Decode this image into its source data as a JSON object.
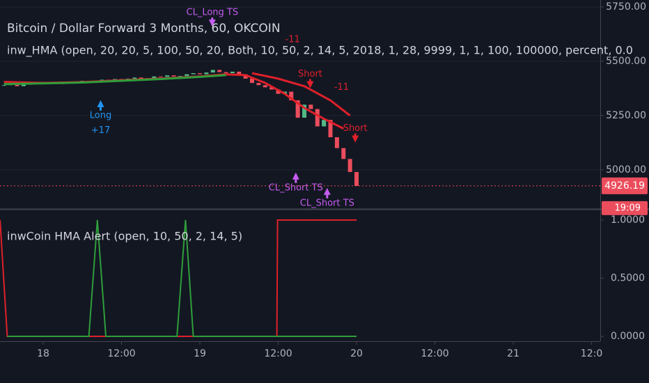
{
  "chart_data": [
    {
      "type": "candlestick",
      "title": "Bitcoin / Dollar Forward 3 Months, 60, OKCOIN",
      "subtitle": "inw_HMA (open, 20, 20, 5, 100, 50, 20, Both, 10, 50, 2, 14, 5, 2018, 1, 28, 9999, 1, 1, 100, 100000, percent, 0.0",
      "x": [
        -6,
        -5,
        -4,
        -3,
        -2,
        -1,
        0,
        1,
        2,
        3,
        4,
        5,
        6,
        7,
        8,
        9,
        10,
        11,
        12,
        13,
        14,
        15,
        16,
        17,
        18,
        19,
        20,
        21,
        22,
        23,
        24,
        25,
        26,
        27,
        28,
        29,
        30,
        31,
        32,
        33,
        34,
        35,
        36,
        37,
        38,
        39,
        40,
        41,
        42,
        43,
        44,
        45,
        46,
        47,
        48
      ],
      "open": [
        5388,
        5390,
        5395,
        5385,
        5392,
        5400,
        5396,
        5405,
        5400,
        5395,
        5402,
        5398,
        5405,
        5410,
        5402,
        5408,
        5415,
        5410,
        5418,
        5412,
        5420,
        5425,
        5418,
        5422,
        5430,
        5428,
        5435,
        5430,
        5432,
        5440,
        5445,
        5440,
        5448,
        5460,
        5450,
        5445,
        5452,
        5440,
        5420,
        5400,
        5390,
        5380,
        5370,
        5350,
        5360,
        5320,
        5240,
        5300,
        5280,
        5200,
        5230,
        5150,
        5100,
        5050,
        4990
      ],
      "close": [
        5390,
        5395,
        5385,
        5392,
        5400,
        5396,
        5405,
        5400,
        5395,
        5402,
        5398,
        5405,
        5410,
        5402,
        5408,
        5415,
        5410,
        5418,
        5412,
        5420,
        5425,
        5418,
        5422,
        5430,
        5428,
        5435,
        5430,
        5432,
        5440,
        5445,
        5440,
        5448,
        5460,
        5450,
        5445,
        5452,
        5440,
        5420,
        5400,
        5390,
        5380,
        5370,
        5350,
        5360,
        5320,
        5240,
        5300,
        5280,
        5200,
        5230,
        5150,
        5100,
        5050,
        4990,
        4926
      ],
      "up_color": "#53b987",
      "down_color": "#eb4d5c",
      "lines": [
        {
          "color": "#e0202a",
          "x": [
            -6,
            0,
            6,
            12,
            18,
            24,
            28,
            31,
            34,
            37,
            40,
            43,
            46
          ],
          "values": [
            5405,
            5400,
            5404,
            5412,
            5420,
            5430,
            5440,
            5436,
            5400,
            5350,
            5285,
            5235,
            5190
          ]
        },
        {
          "color": "#e0202a",
          "x": [
            32,
            36,
            40,
            44,
            47
          ],
          "values": [
            5445,
            5420,
            5385,
            5320,
            5250
          ]
        },
        {
          "color": "#2e9e3a",
          "x": [
            -6,
            0,
            6,
            12,
            18,
            24,
            28
          ],
          "values": [
            5395,
            5398,
            5402,
            5410,
            5418,
            5428,
            5436
          ]
        }
      ],
      "annotations": [
        {
          "text": "CL_Long TS",
          "x": 25.9,
          "y": 5724,
          "color": "#c45cf0",
          "arrow": "down"
        },
        {
          "text": "Long",
          "x": 8.8,
          "y": 5250,
          "color": "#2196f3",
          "arrow": "up"
        },
        {
          "text": "+17",
          "x": 8.8,
          "y": 5180,
          "color": "#2196f3"
        },
        {
          "text": "-11",
          "x": 38.2,
          "y": 5600,
          "color": "#e0202a"
        },
        {
          "text": "Short",
          "x": 40.9,
          "y": 5440,
          "color": "#e0202a",
          "arrow": "down"
        },
        {
          "text": "-11",
          "x": 45.7,
          "y": 5380,
          "color": "#e0202a"
        },
        {
          "text": "Short",
          "x": 47.8,
          "y": 5190,
          "color": "#e0202a",
          "arrow": "down"
        },
        {
          "text": "CL_Short TS",
          "x": 38.7,
          "y": 4917,
          "color": "#c45cf0",
          "arrow": "up"
        },
        {
          "text": "CL_Short TS",
          "x": 43.5,
          "y": 4846,
          "color": "#c45cf0",
          "arrow": "up"
        }
      ],
      "last_price": 4926.19,
      "countdown": "19:09",
      "xlim": [
        -6.613,
        85.33
      ],
      "ylim": [
        4820,
        5782
      ],
      "yticks": [
        {
          "value": 5750,
          "label": "5750.00"
        },
        {
          "value": 5500,
          "label": "5500.00"
        },
        {
          "value": 5250,
          "label": "5250.00"
        },
        {
          "value": 5000,
          "label": "5000.00"
        }
      ]
    },
    {
      "type": "line",
      "title": "inwCoin HMA Alert (open, 10, 50, 2, 14, 5)",
      "series": [
        {
          "color": "#e0202a",
          "x": [
            -6.6,
            -5.5,
            35.8,
            35.9,
            48
          ],
          "values": [
            1,
            0,
            0,
            1,
            1
          ]
        },
        {
          "color": "#2e9e3a",
          "x": [
            -5.5,
            7,
            8.3,
            9.6,
            20.5,
            21.8,
            23,
            48
          ],
          "values": [
            0,
            0,
            1,
            0,
            0,
            1,
            0,
            0
          ]
        }
      ],
      "xlim": [
        -6.613,
        85.33
      ],
      "ylim": [
        -0.042,
        1.096
      ],
      "yticks": [
        {
          "value": 1,
          "label": "1.0000"
        },
        {
          "value": 0.5,
          "label": "0.5000"
        },
        {
          "value": 0,
          "label": "0.0000"
        }
      ],
      "xticks": [
        {
          "value": 0,
          "label": "18"
        },
        {
          "value": 12,
          "label": "12:00"
        },
        {
          "value": 24,
          "label": "19"
        },
        {
          "value": 36,
          "label": "12:00"
        },
        {
          "value": 48,
          "label": "20"
        },
        {
          "value": 60,
          "label": "12:00"
        },
        {
          "value": 72,
          "label": "21"
        },
        {
          "value": 84,
          "label": "12:0"
        }
      ]
    }
  ]
}
